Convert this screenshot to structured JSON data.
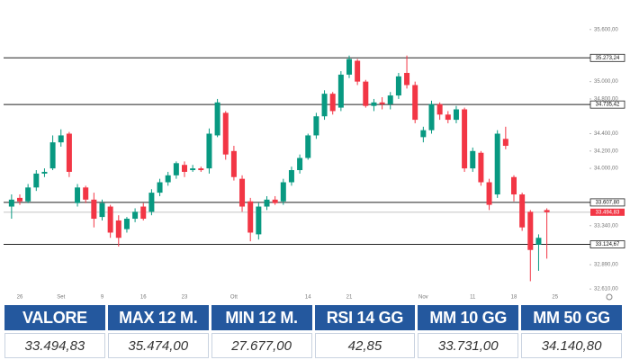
{
  "chart_data": {
    "type": "candlestick",
    "categories": [
      null,
      "26",
      null,
      null,
      null,
      null,
      "Set",
      null,
      null,
      null,
      null,
      "9",
      null,
      null,
      null,
      null,
      "16",
      null,
      null,
      null,
      null,
      "23",
      null,
      null,
      null,
      null,
      null,
      "Ott",
      null,
      null,
      null,
      null,
      null,
      null,
      null,
      null,
      "14",
      null,
      null,
      null,
      null,
      "21",
      null,
      null,
      null,
      null,
      null,
      null,
      null,
      null,
      "Nov",
      null,
      null,
      null,
      null,
      null,
      "11",
      null,
      null,
      null,
      null,
      "18",
      null,
      null,
      null,
      null,
      "25",
      null,
      null,
      null
    ],
    "open": [
      33560,
      33660,
      33620,
      33780,
      33940,
      34000,
      34300,
      34400,
      33600,
      33780,
      33640,
      33440,
      33560,
      33400,
      33300,
      33420,
      33560,
      33500,
      33720,
      33840,
      33920,
      34040,
      33980,
      34000,
      34000,
      34380,
      34640,
      34200,
      33880,
      33620,
      33240,
      33560,
      33640,
      33620,
      33840,
      33980,
      34120,
      34380,
      34600,
      34860,
      34700,
      35080,
      35240,
      35000,
      34720,
      34760,
      34740,
      34840,
      35100,
      34960,
      34360,
      34440,
      34740,
      34620,
      34560,
      34680,
      34000,
      34180,
      33840,
      33700,
      34340,
      33900,
      33700,
      33500,
      33120,
      33520,
      null,
      null,
      null,
      null
    ],
    "high": [
      33700,
      33700,
      33820,
      33980,
      34000,
      34380,
      34450,
      34420,
      33820,
      33800,
      33720,
      33640,
      33580,
      33460,
      33440,
      33540,
      33600,
      33760,
      33880,
      33960,
      34080,
      34080,
      34040,
      34020,
      34460,
      34800,
      34660,
      34260,
      33920,
      33660,
      33600,
      33680,
      33680,
      33880,
      34020,
      34160,
      34400,
      34640,
      34900,
      34880,
      35120,
      35300,
      35260,
      35020,
      34800,
      34820,
      34880,
      35100,
      35300,
      35000,
      34480,
      34780,
      34760,
      34660,
      34720,
      34700,
      34240,
      34200,
      33880,
      34440,
      34480,
      33920,
      33720,
      33520,
      33240,
      33540,
      null,
      null,
      null,
      null
    ],
    "low": [
      33420,
      33580,
      33600,
      33740,
      33900,
      33980,
      34250,
      33900,
      33560,
      33600,
      33320,
      33400,
      33200,
      33100,
      33260,
      33380,
      33400,
      33460,
      33680,
      33800,
      33880,
      33900,
      33960,
      33960,
      33940,
      34360,
      34100,
      33860,
      33500,
      33160,
      33180,
      33520,
      33580,
      33580,
      33800,
      33940,
      34100,
      34340,
      34560,
      34620,
      34660,
      35040,
      34960,
      34700,
      34660,
      34680,
      34680,
      34800,
      34920,
      34520,
      34300,
      34400,
      34560,
      34520,
      34520,
      33960,
      33960,
      33800,
      33520,
      33660,
      34220,
      33620,
      33280,
      32700,
      32820,
      32960,
      null,
      null,
      null,
      null
    ],
    "close": [
      33640,
      33620,
      33780,
      33940,
      33960,
      34300,
      34380,
      33960,
      33780,
      33640,
      33420,
      33600,
      33260,
      33200,
      33420,
      33500,
      33420,
      33720,
      33840,
      33920,
      34060,
      33960,
      34000,
      33980,
      34400,
      34760,
      34160,
      33900,
      33560,
      33260,
      33560,
      33640,
      33600,
      33840,
      33980,
      34120,
      34380,
      34600,
      34860,
      34660,
      35080,
      35260,
      35000,
      34720,
      34760,
      34740,
      34840,
      35060,
      34960,
      34560,
      34440,
      34740,
      34620,
      34560,
      34680,
      34000,
      34200,
      33840,
      33580,
      34400,
      34260,
      33700,
      33320,
      33060,
      33200,
      33494.83,
      null,
      null,
      null,
      null
    ],
    "up_color": "#089981",
    "down_color": "#f23645",
    "ylim": [
      32570,
      35940
    ],
    "yticks": [
      {
        "value": 35600,
        "label": "35.600,00"
      },
      {
        "value": 35000,
        "label": "35.000,00"
      },
      {
        "value": 34800,
        "label": "34.800,00"
      },
      {
        "value": 34400,
        "label": "34.400,00"
      },
      {
        "value": 34200,
        "label": "34.200,00"
      },
      {
        "value": 34000,
        "label": "34.000,00"
      },
      {
        "value": 33340,
        "label": "33.340,00"
      },
      {
        "value": 32890,
        "label": "32.890,00"
      },
      {
        "value": 32610,
        "label": "32.610,00"
      }
    ],
    "levels": [
      {
        "value": 35273.24,
        "label": "35.273,24"
      },
      {
        "value": 34735.42,
        "label": "34.735,42"
      },
      {
        "value": 33607.8,
        "label": "33.607,80"
      },
      {
        "value": 33124.67,
        "label": "33.124,67"
      }
    ],
    "last_price": {
      "value": 33494.83,
      "label": "33.494,83"
    }
  },
  "table": {
    "headers": [
      "VALORE",
      "MAX 12 M.",
      "MIN 12 M.",
      "RSI 14 GG",
      "MM 10 GG",
      "MM 50 GG"
    ],
    "rows": [
      [
        "33.494,83",
        "35.474,00",
        "27.677,00",
        "42,85",
        "33.731,00",
        "34.140,80"
      ]
    ]
  }
}
